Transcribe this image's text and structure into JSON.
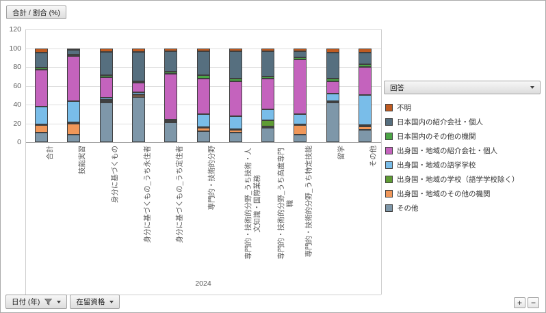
{
  "field_buttons": {
    "value": "合計 / 割合 (%)",
    "legend": "回答",
    "axis": "日付 (年)",
    "filter2": "在留資格"
  },
  "zoom": {
    "plus": "+",
    "minus": "−"
  },
  "chart_data": {
    "type": "bar",
    "subtype": "100-percent-stacked-column",
    "title": "合計 / 割合 (%)",
    "x_axis_group_label": "2024",
    "ylim": [
      0,
      120
    ],
    "yticks": [
      0,
      20,
      40,
      60,
      80,
      100,
      120
    ],
    "grid": true,
    "legend_title": "回答",
    "legend_position": "right",
    "stack_order": "bottom_to_top",
    "categories": [
      "合計",
      "技能実習",
      "身分に基づくもの",
      "身分に基づくもの_うち永住者",
      "身分に基づくもの_うち定住者",
      "専門的・技術的分野",
      "専門的・技術的分野_うち技術・人文知識・国際業務",
      "専門的・技術的分野_うち高度専門職",
      "専門的・技術的分野_うち特定技能",
      "留学",
      "その他"
    ],
    "series": [
      {
        "name": "その他",
        "color": "#7E97A9",
        "values": [
          10,
          8,
          42,
          48,
          21,
          12,
          10,
          15,
          8,
          42,
          13
        ]
      },
      {
        "name": "出身国・地域のその他の機関",
        "color": "#F09759",
        "values": [
          8,
          12,
          2,
          2,
          1,
          3,
          3,
          2,
          10,
          1,
          4
        ]
      },
      {
        "name": "出身国・地域の学校（語学学校除く）",
        "color": "#5F9C34",
        "values": [
          1,
          1,
          1,
          1,
          1,
          1,
          1,
          6,
          1,
          1,
          1
        ]
      },
      {
        "name": "出身国・地域の語学学校",
        "color": "#79BDE9",
        "values": [
          19,
          23,
          2,
          2,
          1,
          14,
          14,
          12,
          11,
          8,
          32
        ]
      },
      {
        "name": "出身国・地域の紹介会社・個人",
        "color": "#C463BD",
        "values": [
          39,
          48,
          22,
          10,
          49,
          38,
          37,
          33,
          58,
          13,
          30
        ]
      },
      {
        "name": "日本国内のその他の機関",
        "color": "#4CA546",
        "values": [
          2,
          1,
          2,
          2,
          2,
          3,
          3,
          2,
          2,
          3,
          3
        ]
      },
      {
        "name": "日本国内の紹介会社・個人",
        "color": "#566F7F",
        "values": [
          16,
          5,
          25,
          31,
          22,
          26,
          29,
          27,
          7,
          27,
          12
        ]
      },
      {
        "name": "不明",
        "color": "#BF5B21",
        "values": [
          5,
          2,
          4,
          4,
          3,
          3,
          3,
          3,
          3,
          5,
          5
        ]
      }
    ]
  }
}
